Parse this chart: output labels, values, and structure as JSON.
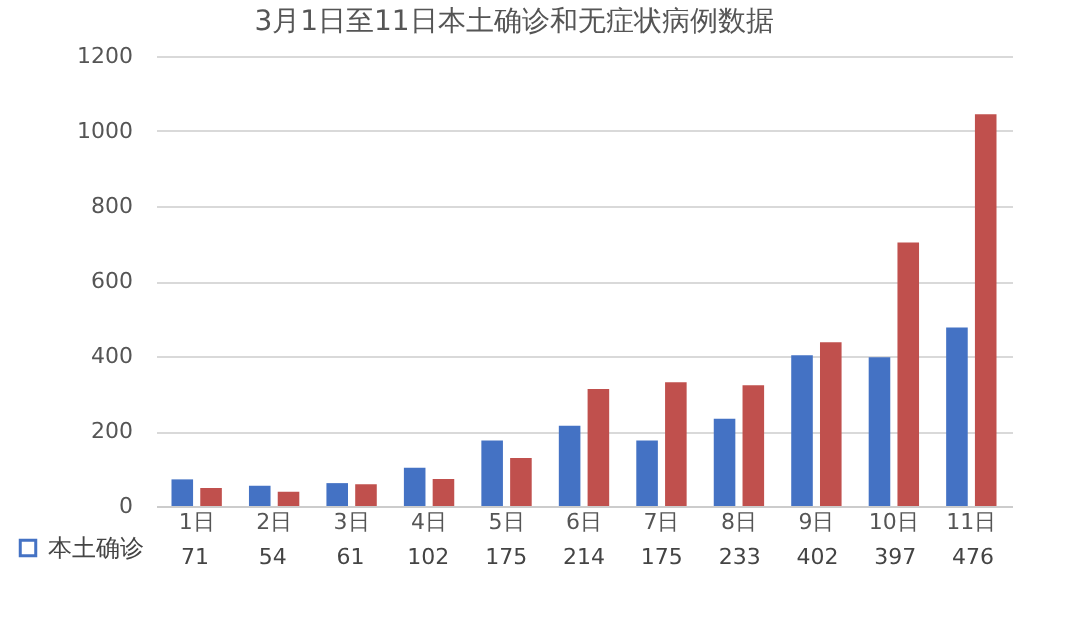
{
  "chart_data": {
    "type": "bar",
    "title": "3月1日至11日本土确诊和无症状病例数据",
    "categories": [
      "1日",
      "2日",
      "3日",
      "4日",
      "5日",
      "6日",
      "7日",
      "8日",
      "9日",
      "10日",
      "11日"
    ],
    "series": [
      {
        "name": "本土确诊",
        "color": "#4472c4",
        "values": [
          71,
          54,
          61,
          102,
          175,
          214,
          175,
          233,
          402,
          397,
          476
        ],
        "value_labels": [
          "71",
          "54",
          "61",
          "102",
          "175",
          "214",
          "175",
          "233",
          "402",
          "397",
          "476"
        ]
      },
      {
        "color": "#c0504d",
        "values": [
          48,
          38,
          58,
          72,
          128,
          312,
          330,
          322,
          437,
          703,
          1045
        ]
      }
    ],
    "ylim": [
      0,
      1200
    ],
    "yticks": [
      0,
      200,
      400,
      600,
      800,
      1000,
      1200
    ],
    "grid": "y",
    "legend": "bottom left"
  }
}
